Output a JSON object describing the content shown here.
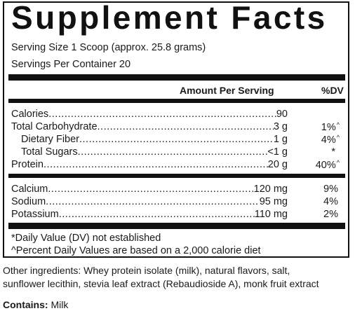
{
  "title": "Supplement Facts",
  "serving_size": "Serving Size 1 Scoop  (approx. 25.8 grams)",
  "servings_per_container": "Servings Per Container 20",
  "header": {
    "amount": "Amount Per Serving",
    "dv": "%DV"
  },
  "nutrients_group1": [
    {
      "label": "Calories",
      "amount": "90",
      "dv": "",
      "mark": ""
    },
    {
      "label": "Total Carbohydrate",
      "amount": "3 g",
      "dv": "1%",
      "mark": "^"
    },
    {
      "label": "Dietary Fiber",
      "amount": "1 g",
      "dv": "4%",
      "mark": "^"
    },
    {
      "label": "Total Sugars",
      "amount": "<1 g",
      "dv": "*",
      "mark": ""
    },
    {
      "label": "Protein",
      "amount": "20 g",
      "dv": "40%",
      "mark": "^"
    }
  ],
  "nutrients_group2": [
    {
      "label": "Calcium",
      "amount": "120 mg",
      "dv": "9%",
      "mark": ""
    },
    {
      "label": "Sodium",
      "amount": "95 mg",
      "dv": "4%",
      "mark": ""
    },
    {
      "label": "Potassium",
      "amount": "110 mg",
      "dv": "2%",
      "mark": ""
    }
  ],
  "footnotes": [
    "*Daily Value (DV) not established",
    "^Percent Daily Values are based on a 2,000 calorie diet"
  ],
  "other_ingredients": [
    "Other ingredients: Whey protein isolate (milk), natural flavors, salt,",
    "sunflower lecithin, stevia leaf extract (Rebaudioside A), monk fruit extract"
  ],
  "contains": {
    "label": "Contains:",
    "value": "Milk"
  }
}
